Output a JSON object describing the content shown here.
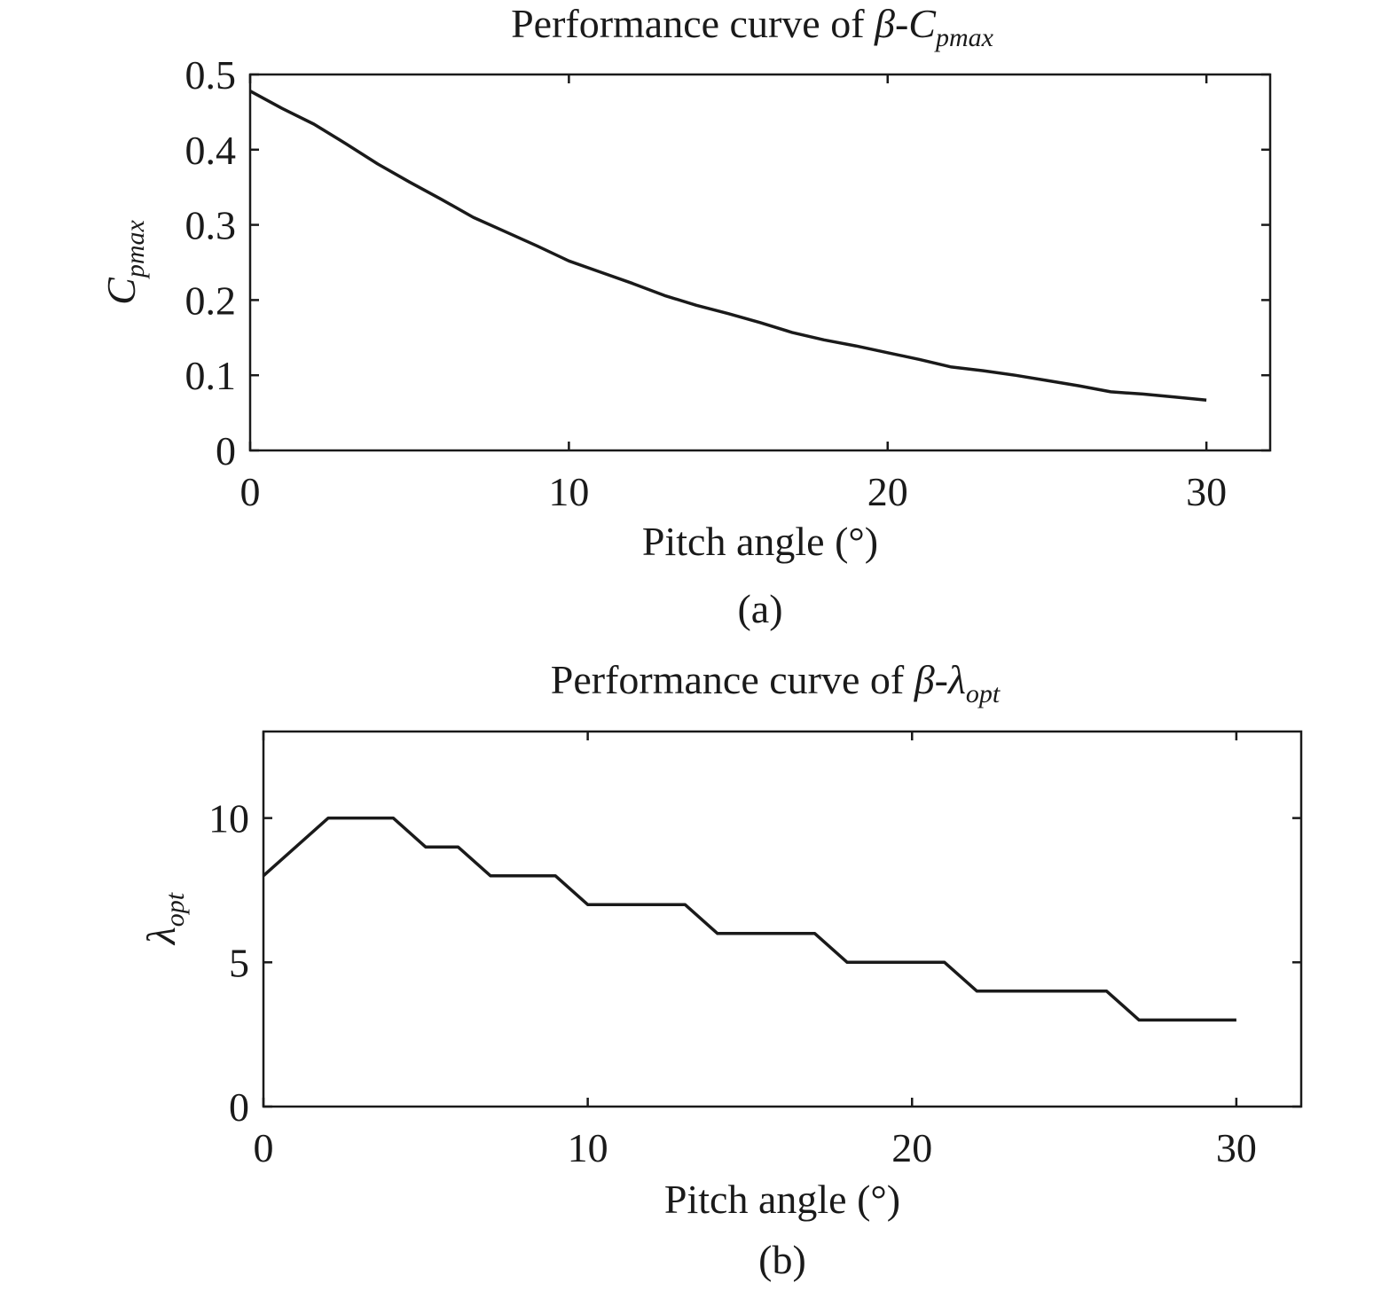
{
  "chart_data": [
    {
      "type": "line",
      "title_main": "Performance curve of ",
      "title_symbol": "β-C",
      "title_sub": "pmax",
      "xlabel": "Pitch angle (°)",
      "ylabel_main": "C",
      "ylabel_sub": "pmax",
      "panel_label": "(a)",
      "xlim": [
        0,
        32
      ],
      "ylim": [
        0,
        0.5
      ],
      "xticks": [
        0,
        10,
        20,
        30
      ],
      "yticks": [
        0,
        0.1,
        0.2,
        0.3,
        0.4,
        0.5
      ],
      "x": [
        0,
        1,
        2,
        3,
        4,
        5,
        6,
        7,
        8,
        9,
        10,
        11,
        12,
        13,
        14,
        15,
        16,
        17,
        18,
        19,
        20,
        21,
        22,
        23,
        24,
        25,
        26,
        27,
        28,
        29,
        30
      ],
      "y": [
        0.478,
        0.455,
        0.434,
        0.408,
        0.381,
        0.357,
        0.334,
        0.31,
        0.291,
        0.272,
        0.252,
        0.237,
        0.222,
        0.206,
        0.193,
        0.182,
        0.17,
        0.157,
        0.147,
        0.139,
        0.13,
        0.121,
        0.111,
        0.106,
        0.1,
        0.093,
        0.086,
        0.078,
        0.075,
        0.071,
        0.067
      ]
    },
    {
      "type": "line",
      "title_main": "Performance curve of ",
      "title_symbol": "β-λ",
      "title_sub": "opt",
      "xlabel": "Pitch angle (°)",
      "ylabel_main": "λ",
      "ylabel_sub": "opt",
      "panel_label": "(b)",
      "xlim": [
        0,
        32
      ],
      "ylim": [
        0,
        13
      ],
      "xticks": [
        0,
        10,
        20,
        30
      ],
      "yticks": [
        0,
        5,
        10
      ],
      "x": [
        0,
        2,
        4,
        5,
        6,
        7,
        9,
        10,
        13,
        14,
        17,
        18,
        21,
        22,
        26,
        27,
        30
      ],
      "y": [
        8,
        10,
        10,
        9,
        9,
        8,
        8,
        7,
        7,
        6,
        6,
        5,
        5,
        4,
        4,
        3,
        3
      ]
    }
  ]
}
